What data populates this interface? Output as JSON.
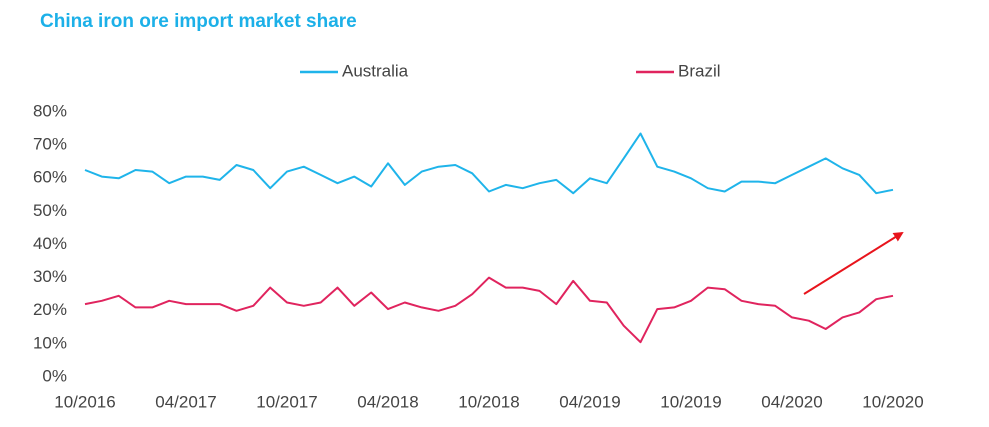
{
  "chart_data": {
    "type": "line",
    "title": "China iron ore import market share",
    "categories": [
      "10/2016",
      null,
      null,
      null,
      null,
      null,
      "04/2017",
      null,
      null,
      null,
      null,
      null,
      "10/2017",
      null,
      null,
      null,
      null,
      null,
      "04/2018",
      null,
      null,
      null,
      null,
      null,
      "10/2018",
      null,
      null,
      null,
      null,
      null,
      "04/2019",
      null,
      null,
      null,
      null,
      null,
      "10/2019",
      null,
      null,
      null,
      null,
      null,
      "04/2020",
      null,
      null,
      null,
      null,
      null,
      "10/2020"
    ],
    "series": [
      {
        "name": "Australia",
        "color": "#1fb4ea",
        "values": [
          62.5,
          60.5,
          60,
          62.5,
          62,
          58.5,
          60.5,
          60.5,
          59.5,
          64,
          62.5,
          57,
          62,
          63.5,
          61,
          58.5,
          60.5,
          57.5,
          64.5,
          58,
          62,
          63.5,
          64,
          61.5,
          56,
          58,
          57,
          58.5,
          59.5,
          55.5,
          60,
          58.5,
          66,
          73.5,
          63.5,
          62,
          60,
          57,
          56,
          59,
          59,
          58.5,
          61,
          63.5,
          66,
          63,
          61,
          55.5,
          56.5
        ]
      },
      {
        "name": "Brazil",
        "color": "#e0245e",
        "values": [
          22,
          23,
          24.5,
          21,
          21,
          23,
          22,
          22,
          22,
          20,
          21.5,
          27,
          22.5,
          21.5,
          22.5,
          27,
          21.5,
          25.5,
          20.5,
          22.5,
          21,
          20,
          21.5,
          25,
          30,
          27,
          27,
          26,
          22,
          29,
          23,
          22.5,
          15.5,
          10.5,
          20.5,
          21,
          23,
          27,
          26.5,
          23,
          22,
          21.5,
          18,
          17,
          14.5,
          18,
          19.5,
          23.5,
          24.5
        ]
      }
    ],
    "ylim": [
      0,
      80
    ],
    "yticks": [
      {
        "value": 0,
        "label": "0%"
      },
      {
        "value": 10,
        "label": "10%"
      },
      {
        "value": 20,
        "label": "20%"
      },
      {
        "value": 30,
        "label": "30%"
      },
      {
        "value": 40,
        "label": "40%"
      },
      {
        "value": 50,
        "label": "50%"
      },
      {
        "value": 60,
        "label": "60%"
      },
      {
        "value": 70,
        "label": "70%"
      },
      {
        "value": 80,
        "label": "80%"
      }
    ],
    "grid": false
  }
}
